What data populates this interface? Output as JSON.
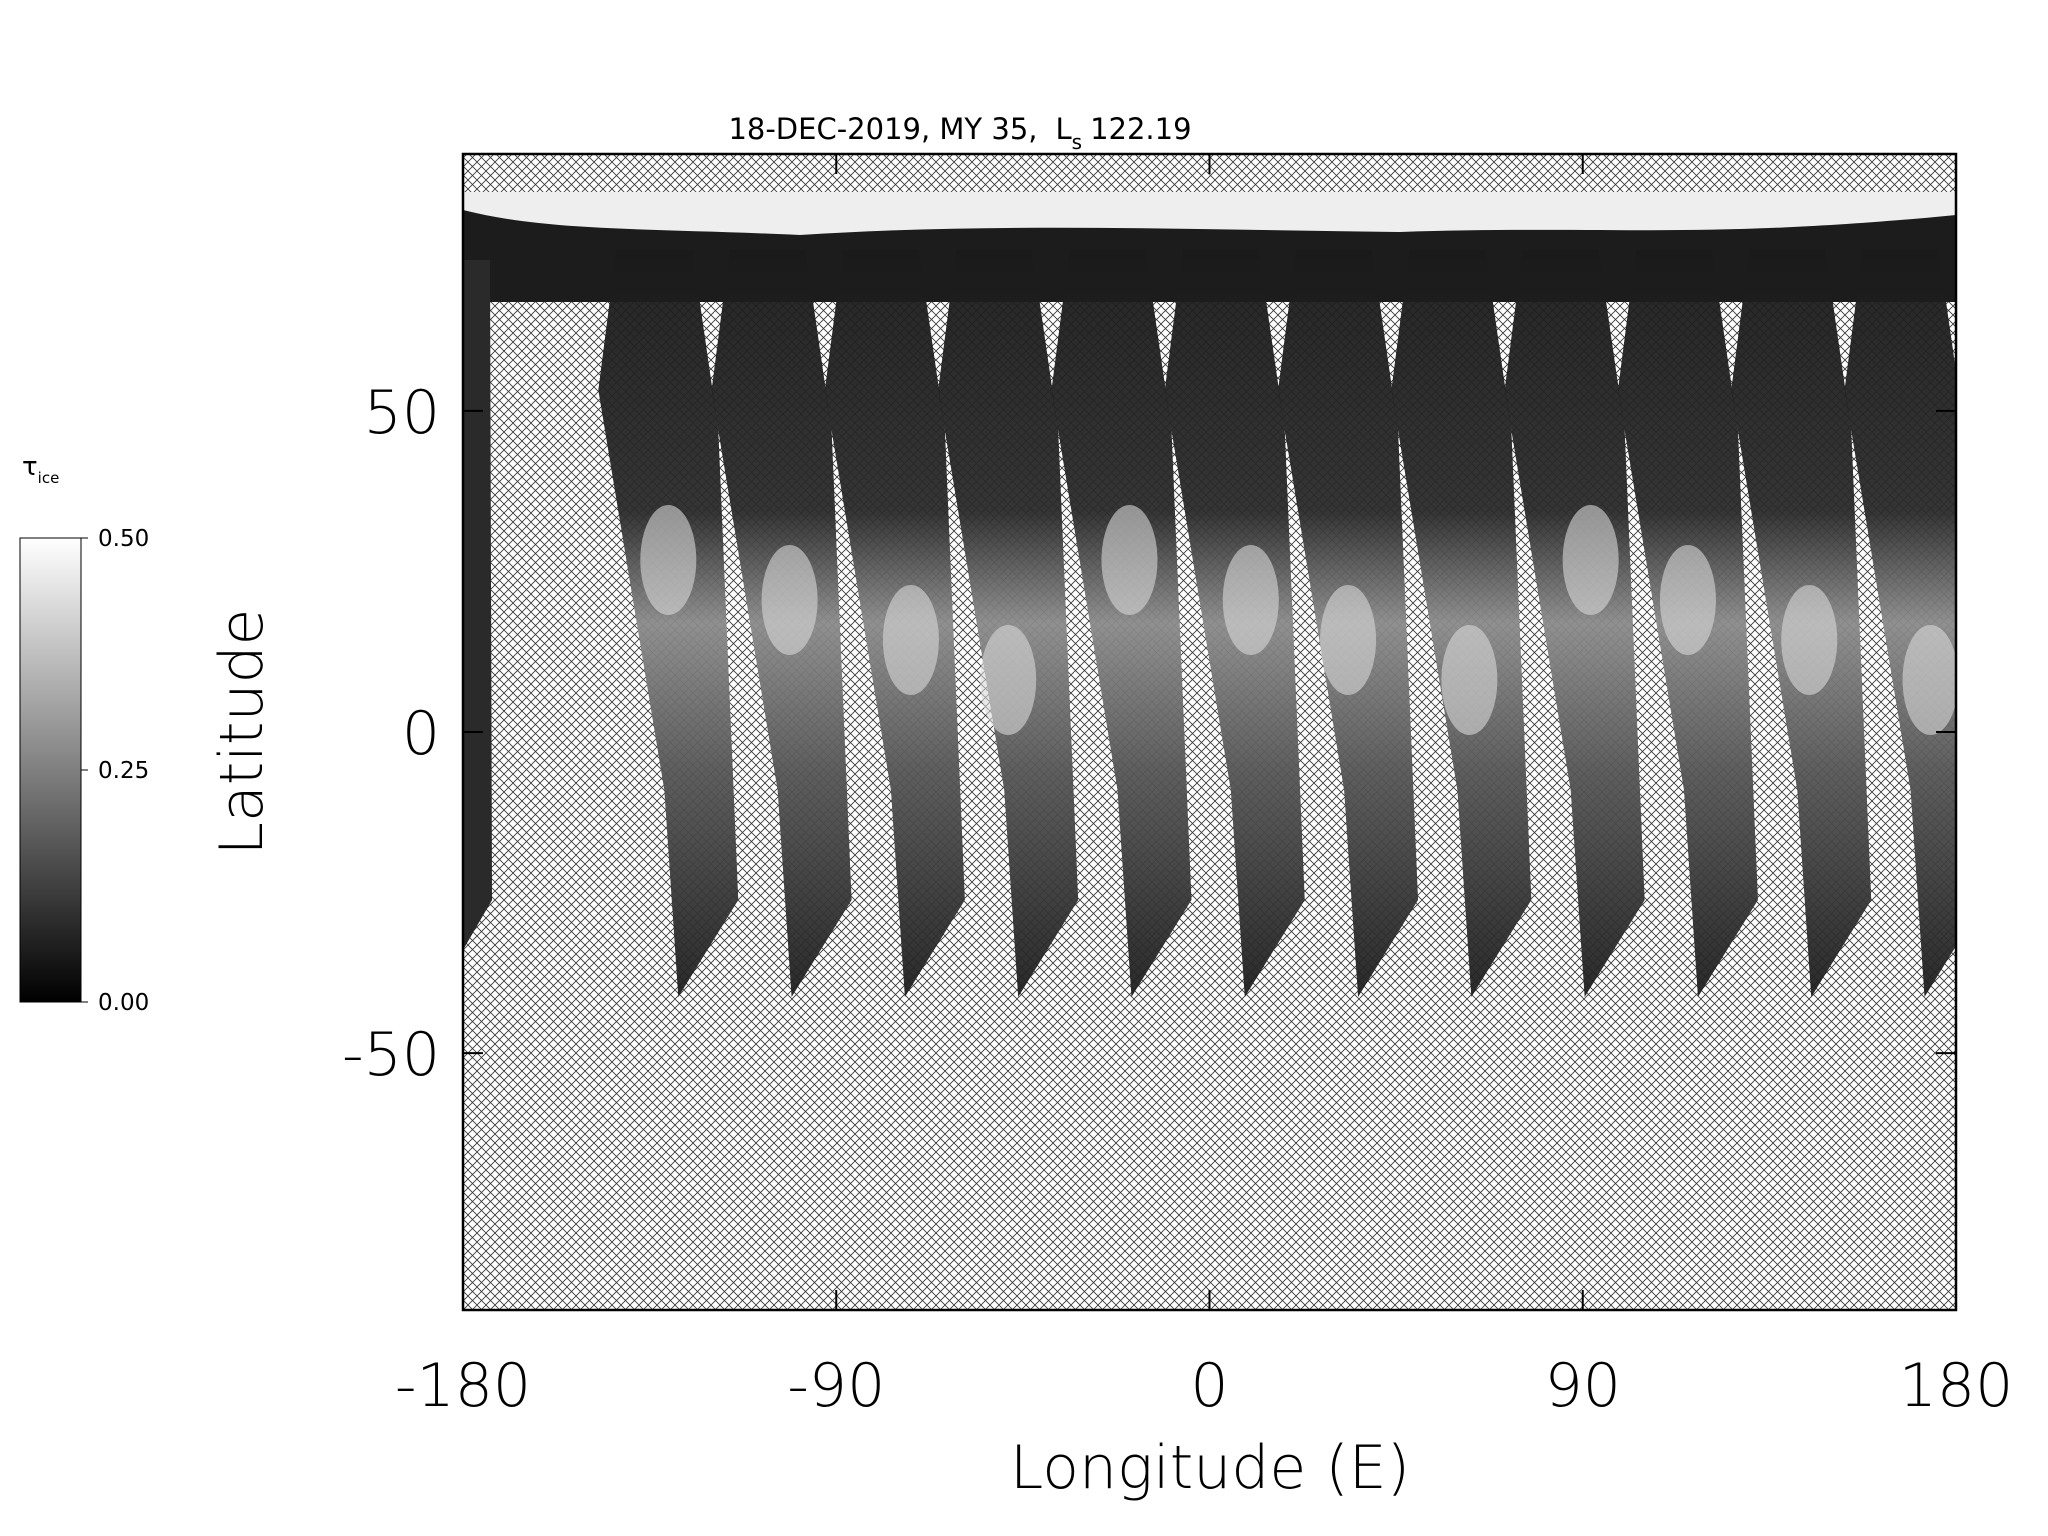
{
  "chart_data": {
    "type": "heatmap",
    "title": {
      "prefix": "18-DEC-2019, MY 35,",
      "ls_symbol": "L",
      "ls_subscript": "s",
      "ls_value": "122.19"
    },
    "xlabel": "Longitude (E)",
    "ylabel": "Latitude",
    "xlim": [
      -180,
      180
    ],
    "ylim": [
      -90,
      90
    ],
    "xticks": [
      -180,
      -90,
      0,
      90,
      180
    ],
    "yticks": [
      -50,
      0,
      50
    ],
    "colorbar": {
      "label_symbol": "τ",
      "label_subscript": "ice",
      "lim": [
        0,
        0.5
      ],
      "ticks": [
        {
          "value": 0,
          "label": "0.00"
        },
        {
          "value": 0.25,
          "label": "0.25"
        },
        {
          "value": 0.5,
          "label": "0.50"
        }
      ],
      "colors": [
        "#000000",
        "#ffffff"
      ]
    }
  }
}
